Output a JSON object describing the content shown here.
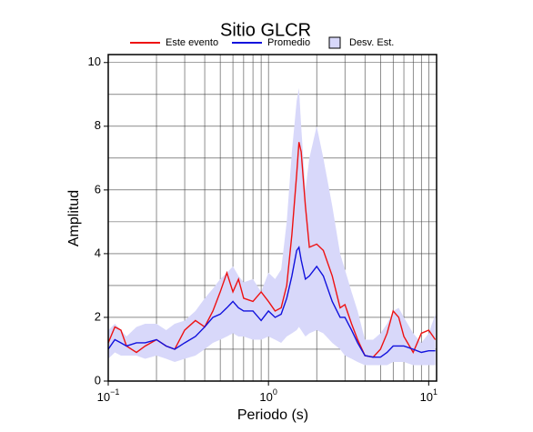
{
  "chart_data": {
    "type": "line",
    "title": "Sitio GLCR",
    "xlabel": "Periodo (s)",
    "ylabel": "Amplitud",
    "xscale": "log",
    "grid": true,
    "xlim": [
      0.1,
      11.2
    ],
    "ylim": [
      0,
      10.25
    ],
    "xticks": [
      {
        "value": 0.1,
        "label": "10",
        "exponent": "−1"
      },
      {
        "value": 1,
        "label": "10",
        "exponent": "0"
      },
      {
        "value": 10,
        "label": "10",
        "exponent": "1"
      }
    ],
    "xminor": [
      0.2,
      0.3,
      0.4,
      0.5,
      0.6,
      0.7,
      0.8,
      0.9,
      2,
      3,
      4,
      5,
      6,
      7,
      8,
      9
    ],
    "yticks": [
      0,
      2,
      4,
      6,
      8,
      10
    ],
    "yminor": [
      1,
      3,
      5,
      7,
      9
    ],
    "x": [
      0.1,
      0.11,
      0.12,
      0.13,
      0.15,
      0.17,
      0.2,
      0.23,
      0.26,
      0.3,
      0.35,
      0.4,
      0.45,
      0.5,
      0.55,
      0.6,
      0.65,
      0.7,
      0.8,
      0.9,
      1.0,
      1.1,
      1.2,
      1.3,
      1.4,
      1.5,
      1.55,
      1.6,
      1.7,
      1.8,
      2.0,
      2.2,
      2.5,
      2.8,
      3.0,
      3.3,
      3.6,
      4.0,
      4.5,
      5,
      5.5,
      6,
      6.5,
      7,
      8,
      9,
      10,
      11
    ],
    "series": [
      {
        "name": "Este evento",
        "color": "#ee1111",
        "values": [
          1.2,
          1.7,
          1.6,
          1.1,
          0.9,
          1.1,
          1.3,
          1.1,
          1.0,
          1.6,
          1.9,
          1.7,
          2.2,
          2.8,
          3.4,
          2.8,
          3.2,
          2.6,
          2.5,
          2.8,
          2.5,
          2.2,
          2.3,
          3.0,
          4.6,
          6.5,
          7.5,
          7.2,
          5.5,
          4.2,
          4.3,
          4.1,
          3.3,
          2.3,
          2.4,
          1.8,
          1.3,
          0.8,
          0.75,
          1.0,
          1.5,
          2.2,
          2.0,
          1.4,
          0.9,
          1.5,
          1.6,
          1.3
        ]
      },
      {
        "name": "Promedio",
        "color": "#1111dd",
        "values": [
          1.0,
          1.3,
          1.2,
          1.1,
          1.2,
          1.2,
          1.3,
          1.1,
          1.0,
          1.2,
          1.4,
          1.7,
          2.0,
          2.1,
          2.3,
          2.5,
          2.3,
          2.2,
          2.2,
          1.9,
          2.2,
          2.0,
          2.1,
          2.6,
          3.3,
          4.1,
          4.2,
          3.8,
          3.2,
          3.3,
          3.6,
          3.3,
          2.5,
          2.0,
          2.0,
          1.6,
          1.2,
          0.8,
          0.75,
          0.75,
          0.9,
          1.1,
          1.1,
          1.1,
          1.0,
          0.9,
          0.95,
          0.95
        ]
      },
      {
        "name": "Desv. Est.",
        "color": "#d8d8fa",
        "upper": [
          1.6,
          1.8,
          1.6,
          1.4,
          1.7,
          1.8,
          1.8,
          1.6,
          1.8,
          1.9,
          2.2,
          2.6,
          2.9,
          3.2,
          3.4,
          3.6,
          3.3,
          3.1,
          3.2,
          2.8,
          3.4,
          3.2,
          3.5,
          5.0,
          7.2,
          8.8,
          9.2,
          8.0,
          6.0,
          7.0,
          8.0,
          7.0,
          5.5,
          4.0,
          3.5,
          2.8,
          2.2,
          1.3,
          1.3,
          1.5,
          1.8,
          2.2,
          2.3,
          2.0,
          1.5,
          1.2,
          1.5,
          2.1
        ],
        "lower": [
          0.7,
          0.9,
          0.8,
          0.8,
          0.8,
          0.7,
          0.8,
          0.7,
          0.6,
          0.7,
          0.8,
          1.0,
          1.2,
          1.3,
          1.4,
          1.5,
          1.4,
          1.4,
          1.3,
          1.3,
          1.4,
          1.3,
          1.2,
          1.4,
          1.5,
          1.6,
          1.7,
          1.6,
          1.4,
          1.5,
          1.6,
          1.5,
          1.2,
          1.0,
          0.8,
          0.7,
          0.6,
          0.5,
          0.5,
          0.5,
          0.5,
          0.6,
          0.6,
          0.6,
          0.5,
          0.5,
          0.5,
          0.5
        ]
      }
    ]
  }
}
